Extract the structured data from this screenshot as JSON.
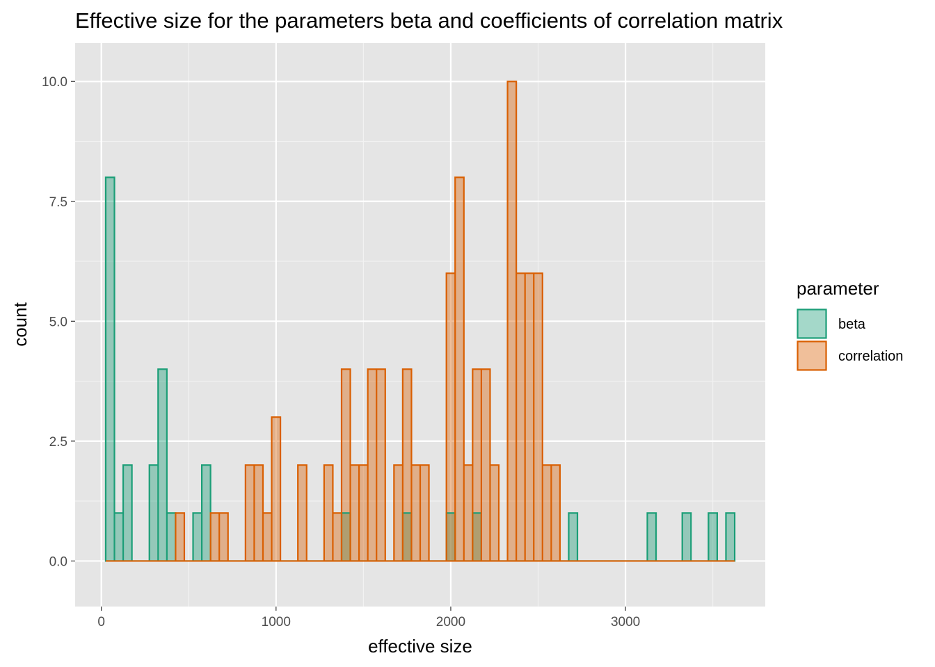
{
  "chart_data": {
    "type": "bar",
    "title": "Effective size for the parameters beta and coefficients of correlation matrix",
    "xlabel": "effective size",
    "ylabel": "count",
    "xlim": [
      -150,
      3800
    ],
    "ylim": [
      -0.95,
      10.8
    ],
    "x_ticks": [
      0,
      1000,
      2000,
      3000
    ],
    "x_tick_labels": [
      "0",
      "1000",
      "2000",
      "3000"
    ],
    "y_ticks": [
      0,
      2.5,
      5,
      7.5,
      10
    ],
    "y_tick_labels": [
      "0.0",
      "2.5",
      "5.0",
      "7.5",
      "10.0"
    ],
    "binwidth": 50,
    "x_range": [
      25,
      3625
    ],
    "legend": {
      "title": "parameter",
      "position": "right"
    },
    "grid": true,
    "series": [
      {
        "name": "beta",
        "color": "#1b9e77",
        "fill": "#1b9e77",
        "fill_opacity": 0.4,
        "bins": [
          {
            "x": 50,
            "y": 8
          },
          {
            "x": 100,
            "y": 1
          },
          {
            "x": 150,
            "y": 2
          },
          {
            "x": 300,
            "y": 2
          },
          {
            "x": 350,
            "y": 4
          },
          {
            "x": 400,
            "y": 1
          },
          {
            "x": 550,
            "y": 1
          },
          {
            "x": 600,
            "y": 2
          },
          {
            "x": 1400,
            "y": 1
          },
          {
            "x": 1750,
            "y": 1
          },
          {
            "x": 2000,
            "y": 1
          },
          {
            "x": 2150,
            "y": 1
          },
          {
            "x": 2700,
            "y": 1
          },
          {
            "x": 3150,
            "y": 1
          },
          {
            "x": 3350,
            "y": 1
          },
          {
            "x": 3500,
            "y": 1
          },
          {
            "x": 3600,
            "y": 1
          }
        ]
      },
      {
        "name": "correlation",
        "color": "#d95f02",
        "fill": "#d95f02",
        "fill_opacity": 0.4,
        "bins": [
          {
            "x": 450,
            "y": 1
          },
          {
            "x": 650,
            "y": 1
          },
          {
            "x": 700,
            "y": 1
          },
          {
            "x": 850,
            "y": 2
          },
          {
            "x": 900,
            "y": 2
          },
          {
            "x": 950,
            "y": 1
          },
          {
            "x": 1000,
            "y": 3
          },
          {
            "x": 1150,
            "y": 2
          },
          {
            "x": 1300,
            "y": 2
          },
          {
            "x": 1350,
            "y": 1
          },
          {
            "x": 1400,
            "y": 4
          },
          {
            "x": 1450,
            "y": 2
          },
          {
            "x": 1500,
            "y": 2
          },
          {
            "x": 1550,
            "y": 4
          },
          {
            "x": 1600,
            "y": 4
          },
          {
            "x": 1700,
            "y": 2
          },
          {
            "x": 1750,
            "y": 4
          },
          {
            "x": 1800,
            "y": 2
          },
          {
            "x": 1850,
            "y": 2
          },
          {
            "x": 2000,
            "y": 6
          },
          {
            "x": 2050,
            "y": 8
          },
          {
            "x": 2100,
            "y": 2
          },
          {
            "x": 2150,
            "y": 4
          },
          {
            "x": 2200,
            "y": 4
          },
          {
            "x": 2250,
            "y": 2
          },
          {
            "x": 2350,
            "y": 10
          },
          {
            "x": 2400,
            "y": 6
          },
          {
            "x": 2450,
            "y": 6
          },
          {
            "x": 2500,
            "y": 6
          },
          {
            "x": 2550,
            "y": 2
          },
          {
            "x": 2600,
            "y": 2
          }
        ]
      }
    ]
  }
}
